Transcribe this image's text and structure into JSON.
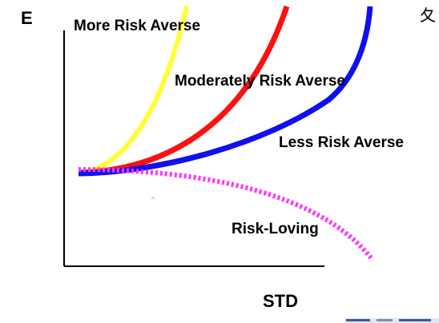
{
  "axes": {
    "y_label": "E",
    "x_label": "STD",
    "color": "#000000"
  },
  "curves": [
    {
      "key": "more",
      "label": "More Risk Averse",
      "color": "#ffff33",
      "style": "solid"
    },
    {
      "key": "moderate",
      "label": "Moderately Risk  Averse",
      "color": "#ff1010",
      "style": "solid"
    },
    {
      "key": "less",
      "label": "Less Risk Averse",
      "color": "#1010ee",
      "style": "solid"
    },
    {
      "key": "loving",
      "label": "Risk-Loving",
      "color": "#ff33ff",
      "style": "dotted"
    }
  ],
  "corner_glyph": "夂",
  "small_mark": "^"
}
